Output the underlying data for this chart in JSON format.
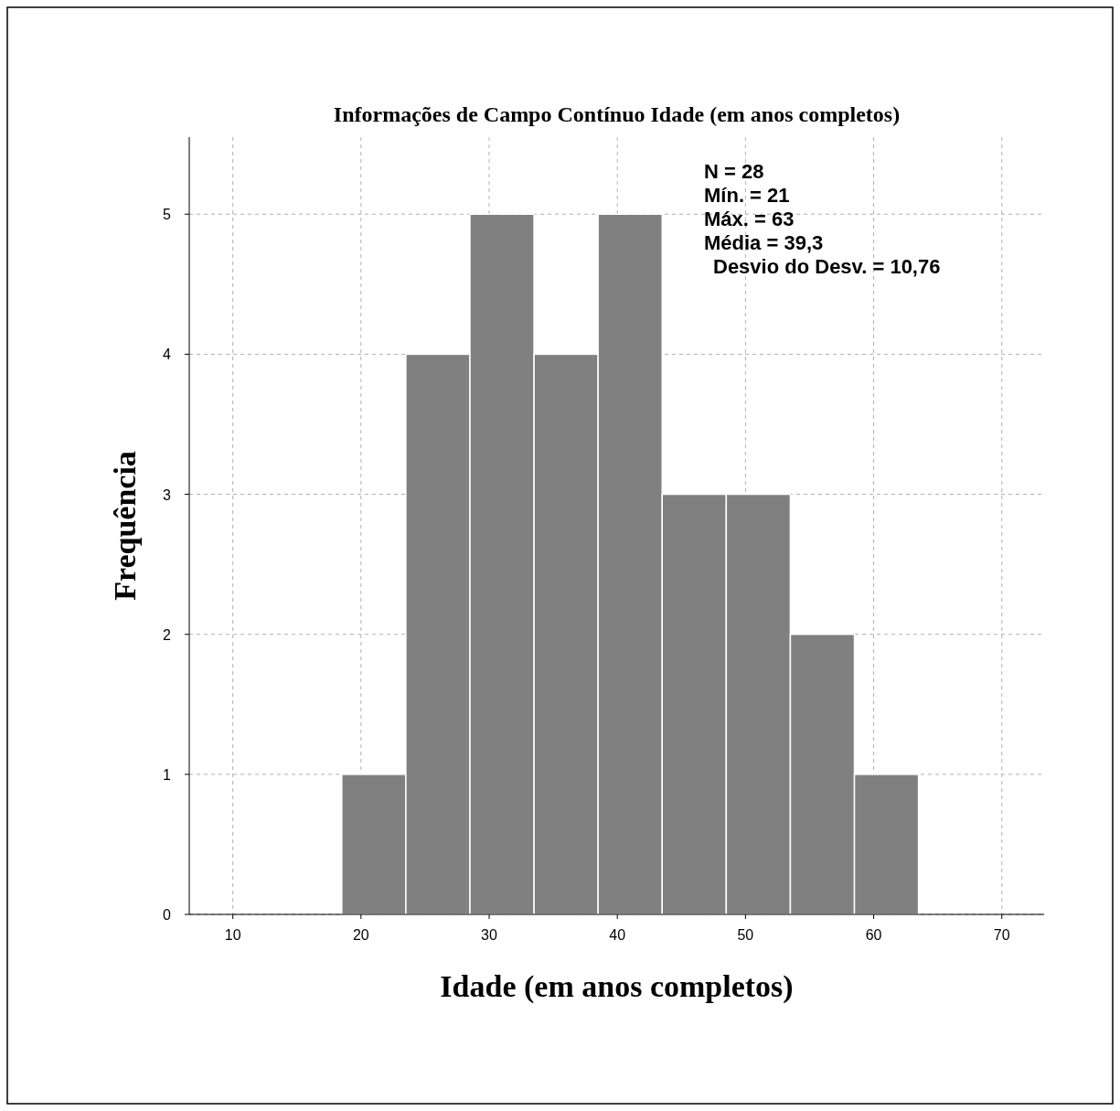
{
  "chart_data": {
    "type": "histogram",
    "title": "Informações de Campo Contínuo Idade (em anos completos)",
    "xlabel": "Idade (em anos completos)",
    "ylabel": "Frequência",
    "bins": [
      18.5,
      23.5,
      28.5,
      33.5,
      38.5,
      43.5,
      48.5,
      53.5,
      58.5,
      63.5
    ],
    "values": [
      1,
      4,
      5,
      4,
      5,
      3,
      3,
      2,
      1
    ],
    "color": "#808080",
    "xlim": [
      6.6,
      73.3
    ],
    "xticks": [
      10,
      20,
      30,
      40,
      50,
      60,
      70
    ],
    "ylim": [
      0,
      5.55
    ],
    "yticks": [
      0,
      1,
      2,
      3,
      4,
      5
    ],
    "grid": true,
    "annotations": [
      "N = 28",
      "Mín. = 21",
      "Máx. = 63",
      "Média = 39,3",
      "Desvio do Desv. = 10,76"
    ]
  }
}
